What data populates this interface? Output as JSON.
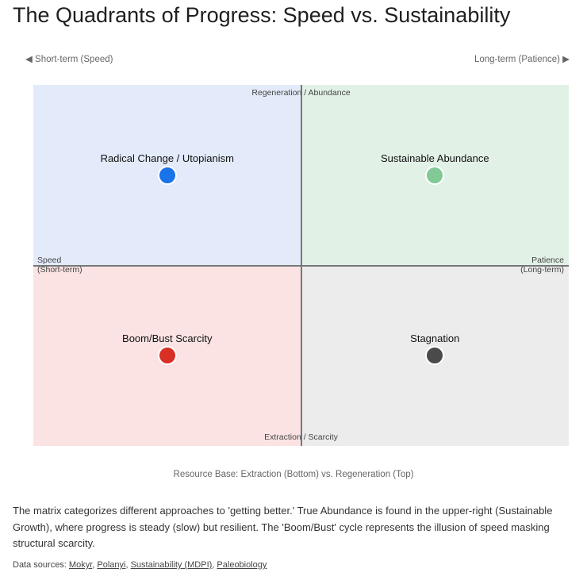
{
  "chart_data": {
    "type": "scatter",
    "title": "The Quadrants of Progress: Speed vs. Sustainability",
    "direction_labels": {
      "left": "◀ Short-term (Speed)",
      "right": "Long-term (Patience) ▶"
    },
    "axis_labels": {
      "top": "Regeneration / Abundance",
      "bottom": "Extraction / Scarcity",
      "left_line1": "Speed",
      "left_line2": "(Short-term)",
      "right_line1": "Patience",
      "right_line2": "(Long-term)"
    },
    "xlabel": "Resource Base: Extraction (Bottom) vs. Regeneration (Top)",
    "xlim": [
      -1,
      1
    ],
    "ylim": [
      -1,
      1
    ],
    "quadrant_colors": {
      "top_left": "#e3ebfb",
      "top_right": "#e2f1e6",
      "bottom_left": "#fbe3e3",
      "bottom_right": "#ececec"
    },
    "points": [
      {
        "label": "Radical Change / Utopianism",
        "x": -0.5,
        "y": 0.5,
        "color": "#1a73e8"
      },
      {
        "label": "Sustainable Abundance",
        "x": 0.5,
        "y": 0.5,
        "color": "#81c995"
      },
      {
        "label": "Boom/Bust Scarcity",
        "x": -0.5,
        "y": -0.5,
        "color": "#d93025"
      },
      {
        "label": "Stagnation",
        "x": 0.5,
        "y": -0.5,
        "color": "#4a4a4a"
      }
    ]
  },
  "description": "The matrix categorizes different approaches to 'getting better.' True Abundance is found in the upper-right (Sustainable Growth), where progress is steady (slow) but resilient. The 'Boom/Bust' cycle represents the illusion of speed masking structural scarcity.",
  "sources": {
    "prefix": "Data sources: ",
    "links": [
      "Mokyr",
      "Polanyi",
      "Sustainability (MDPI)",
      "Paleobiology"
    ]
  }
}
